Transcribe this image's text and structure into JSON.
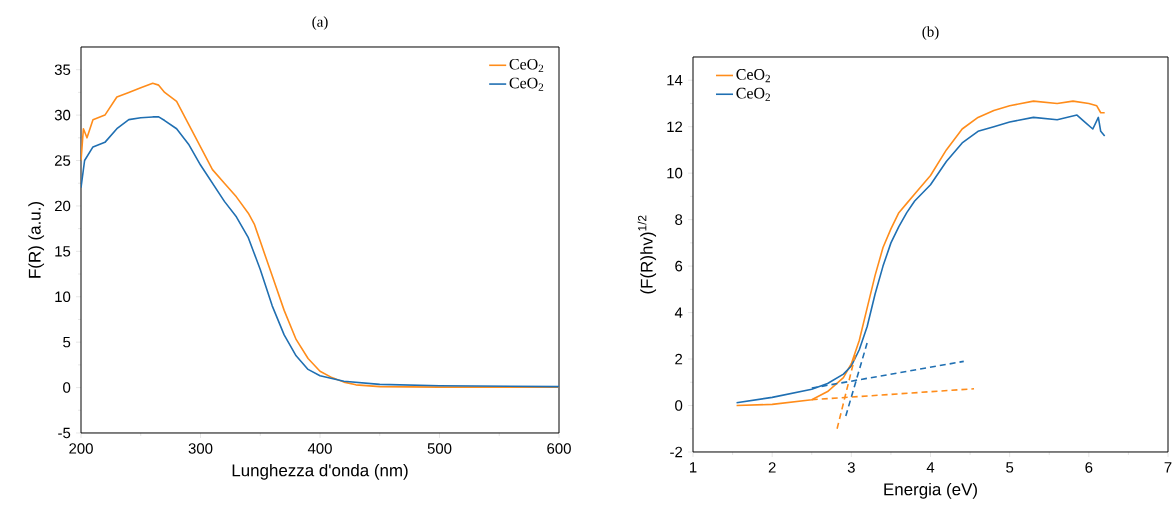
{
  "chart_data": [
    {
      "type": "line",
      "title": "(a)",
      "xlabel": "Lunghezza d'onda (nm)",
      "ylabel": "F(R) (a.u.)",
      "xlim": [
        200,
        600
      ],
      "ylim": [
        -5,
        37.5
      ],
      "xticks": [
        200,
        300,
        400,
        500,
        600
      ],
      "yticks": [
        -5,
        0,
        5,
        10,
        15,
        20,
        25,
        30,
        35
      ],
      "legend": "top right",
      "series": [
        {
          "name": "CeO$_{2}$",
          "color": "#ff8c1a",
          "x": [
            200,
            202,
            205,
            210,
            220,
            230,
            240,
            250,
            260,
            265,
            270,
            280,
            290,
            300,
            310,
            320,
            330,
            340,
            345,
            350,
            360,
            370,
            380,
            390,
            400,
            410,
            420,
            430,
            450,
            500,
            600
          ],
          "values": [
            25,
            28.5,
            27.5,
            29.5,
            30,
            32,
            32.5,
            33,
            33.5,
            33.3,
            32.5,
            31.5,
            29,
            26.5,
            24,
            22.5,
            21,
            19.2,
            18,
            16.1,
            12.3,
            8.5,
            5.3,
            3.2,
            1.8,
            1.1,
            0.6,
            0.3,
            0.1,
            0.05,
            0.05
          ]
        },
        {
          "name": "CeO$_{2}$",
          "color": "#1f6fb2",
          "x": [
            200,
            203,
            210,
            220,
            230,
            240,
            250,
            260,
            265,
            270,
            280,
            290,
            300,
            310,
            320,
            330,
            340,
            350,
            360,
            370,
            380,
            390,
            400,
            420,
            450,
            500,
            600
          ],
          "values": [
            22,
            25,
            26.5,
            27,
            28.5,
            29.5,
            29.7,
            29.8,
            29.8,
            29.4,
            28.5,
            26.8,
            24.5,
            22.5,
            20.5,
            18.8,
            16.5,
            13,
            9,
            5.8,
            3.5,
            2,
            1.3,
            0.7,
            0.35,
            0.2,
            0.1
          ]
        }
      ]
    },
    {
      "type": "line",
      "title": "(b)",
      "xlabel": "Energia (eV)",
      "ylabel": "(F(R)hv)$^{1/2}$",
      "xlim": [
        1,
        7
      ],
      "ylim": [
        -2,
        15
      ],
      "xticks": [
        1,
        2,
        3,
        4,
        5,
        6,
        7
      ],
      "yticks": [
        -2,
        0,
        2,
        4,
        6,
        8,
        10,
        12,
        14
      ],
      "legend": "top left",
      "series": [
        {
          "name": "CeO$_{2}$",
          "color": "#ff8c1a",
          "x": [
            1.55,
            2,
            2.5,
            2.7,
            2.9,
            3.0,
            3.1,
            3.2,
            3.3,
            3.4,
            3.5,
            3.6,
            3.7,
            3.8,
            4.0,
            4.2,
            4.4,
            4.6,
            4.8,
            5.0,
            5.3,
            5.6,
            5.8,
            6.0,
            6.1,
            6.15,
            6.2
          ],
          "values": [
            0,
            0.05,
            0.25,
            0.6,
            1.2,
            1.8,
            2.8,
            4.2,
            5.6,
            6.8,
            7.6,
            8.3,
            8.7,
            9.1,
            9.9,
            11.0,
            11.9,
            12.4,
            12.7,
            12.9,
            13.1,
            13.0,
            13.1,
            13.0,
            12.9,
            12.6,
            12.6
          ]
        },
        {
          "name": "CeO$_{2}$",
          "color": "#1f6fb2",
          "x": [
            1.55,
            2,
            2.5,
            2.7,
            2.9,
            3.0,
            3.1,
            3.2,
            3.3,
            3.4,
            3.5,
            3.6,
            3.7,
            3.8,
            4.0,
            4.2,
            4.4,
            4.6,
            4.8,
            5.0,
            5.3,
            5.6,
            5.85,
            5.95,
            6.05,
            6.12,
            6.15,
            6.2
          ],
          "values": [
            0.12,
            0.35,
            0.7,
            0.95,
            1.35,
            1.7,
            2.4,
            3.4,
            4.8,
            6.0,
            7.0,
            7.7,
            8.3,
            8.8,
            9.5,
            10.5,
            11.3,
            11.8,
            12.0,
            12.2,
            12.4,
            12.3,
            12.5,
            12.2,
            11.9,
            12.4,
            11.8,
            11.6
          ]
        },
        {
          "color": "#ff8c1a",
          "line_style": "dashed",
          "x": [
            2.5,
            4.55
          ],
          "values": [
            0.25,
            0.72
          ]
        },
        {
          "color": "#ff8c1a",
          "line_style": "dashed",
          "x": [
            2.82,
            3.06
          ],
          "values": [
            -1.0,
            2.3
          ]
        },
        {
          "color": "#1f6fb2",
          "line_style": "dashed",
          "x": [
            2.5,
            4.42
          ],
          "values": [
            0.75,
            1.9
          ]
        },
        {
          "color": "#1f6fb2",
          "line_style": "dashed",
          "x": [
            2.93,
            3.2
          ],
          "values": [
            -0.45,
            2.7
          ]
        }
      ]
    }
  ]
}
